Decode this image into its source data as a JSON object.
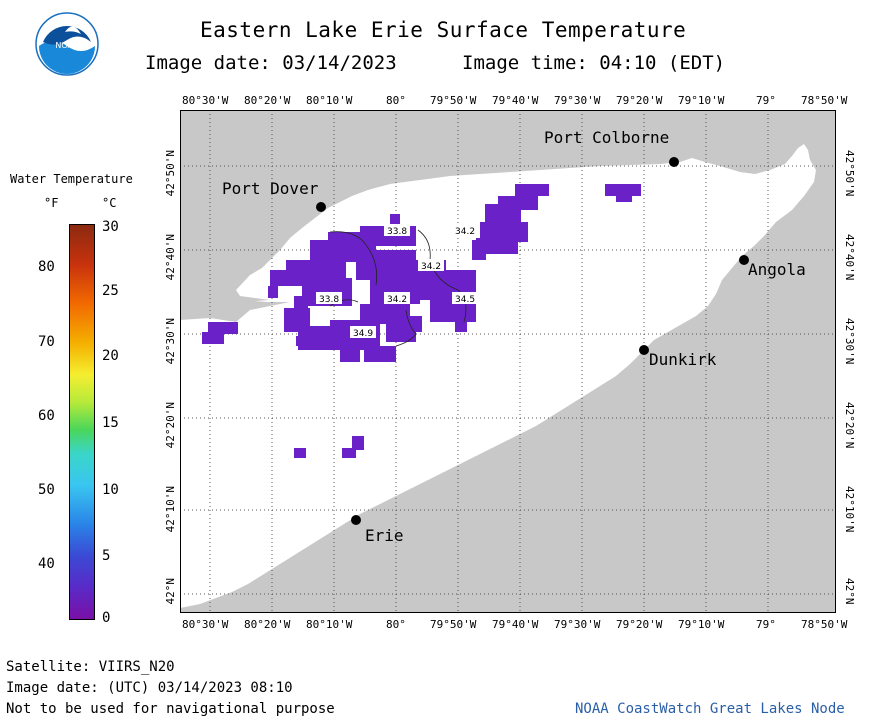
{
  "title": "Eastern Lake Erie Surface Temperature",
  "image_date_label": "Image date: 03/14/2023",
  "image_time_label": "Image time: 04:10 (EDT)",
  "logo": {
    "text": "NOAA"
  },
  "colors": {
    "land": "#c8c8c8",
    "water": "#ffffff",
    "cold_water": "#6a22c8",
    "credit": "#2a5fa8"
  },
  "legend": {
    "title": "Water Temperature",
    "unit_f": "°F",
    "unit_c": "°C",
    "f_ticks": [
      "80",
      "70",
      "60",
      "50",
      "40"
    ],
    "c_ticks": [
      "30",
      "25",
      "20",
      "15",
      "10",
      "5",
      "0"
    ]
  },
  "lon_labels": [
    "80°30'W",
    "80°20'W",
    "80°10'W",
    "80°",
    "79°50'W",
    "79°40'W",
    "79°30'W",
    "79°20'W",
    "79°10'W",
    "79°",
    "78°50'W"
  ],
  "lat_labels": [
    "42°50'N",
    "42°40'N",
    "42°30'N",
    "42°20'N",
    "42°10'N",
    "42°N"
  ],
  "cities": [
    {
      "name": "Port Colborne"
    },
    {
      "name": "Port Dover"
    },
    {
      "name": "Angola"
    },
    {
      "name": "Dunkirk"
    },
    {
      "name": "Erie"
    }
  ],
  "isotherm_labels": [
    "33.8",
    "34.2",
    "34.2",
    "33.8",
    "34.2",
    "34.5",
    "34.9"
  ],
  "footer": {
    "satellite": "Satellite: VIIRS_N20",
    "utc_date": "Image date: (UTC) 03/14/2023  08:10",
    "disclaimer": "Not to be used for navigational purpose",
    "credit": "NOAA CoastWatch Great Lakes Node"
  }
}
